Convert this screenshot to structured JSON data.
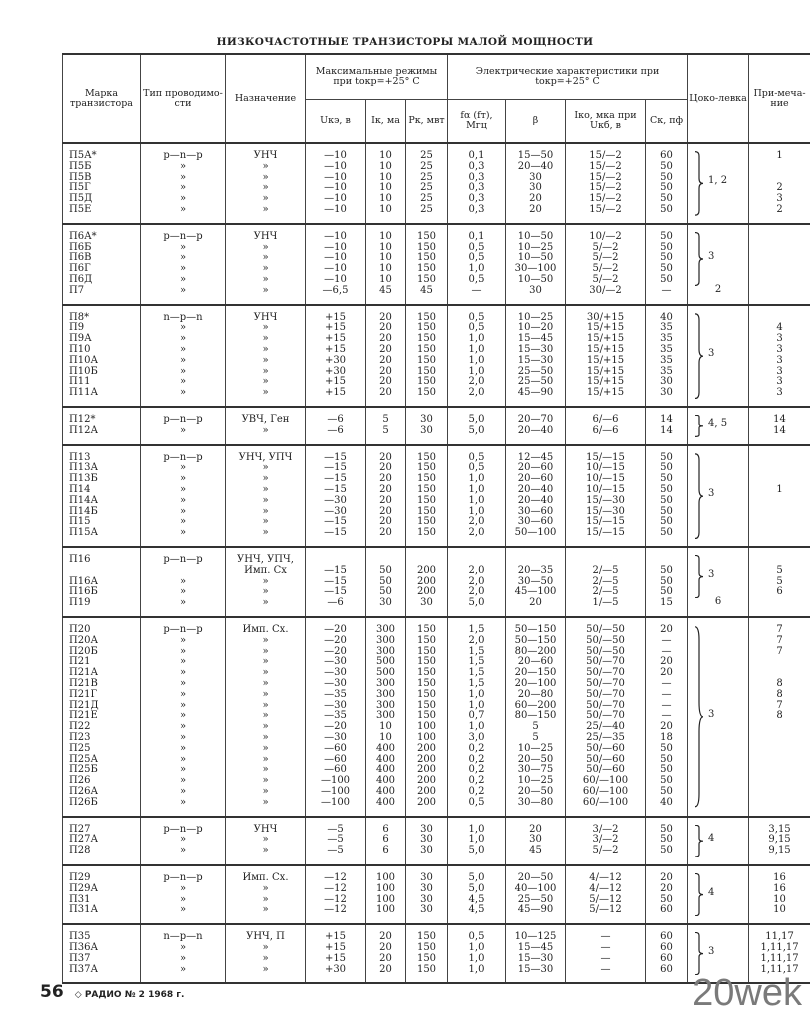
{
  "title": "НИЗКОЧАСТОТНЫЕ ТРАНЗИСТОРЫ МАЛОЙ МОЩНОСТИ",
  "headers": {
    "mark": "Марка транзистора",
    "type": "Тип проводимо-сти",
    "purpose": "Назначение",
    "max_group": "Максимальные режимы при tокр=+25° С",
    "el_group": "Электрические характеристики при tокр=+25° С",
    "base": "Цоко-левка",
    "note": "При-меча-ние",
    "u": "Uкэ, в",
    "i": "Iк, ма",
    "p": "Pк, мвт",
    "f": "fα (fт), Мгц",
    "beta": "β",
    "iko": "Iко, мка при Uкб, в",
    "ck": "Cк, пф"
  },
  "groups": [
    {
      "base": "1, 2",
      "rows": [
        [
          "П5А*",
          "p—n—p",
          "УНЧ",
          "—10",
          "10",
          "25",
          "0,1",
          "15—50",
          "15/—2",
          "60",
          "",
          "1"
        ],
        [
          "П5Б",
          "»",
          "»",
          "—10",
          "10",
          "25",
          "0,3",
          "20—40",
          "15/—2",
          "50",
          "",
          ""
        ],
        [
          "П5В",
          "»",
          "»",
          "—10",
          "10",
          "25",
          "0,3",
          "30",
          "15/—2",
          "50",
          "",
          ""
        ],
        [
          "П5Г",
          "»",
          "»",
          "—10",
          "10",
          "25",
          "0,3",
          "30",
          "15/—2",
          "50",
          "",
          "2"
        ],
        [
          "П5Д",
          "»",
          "»",
          "—10",
          "10",
          "25",
          "0,3",
          "20",
          "15/—2",
          "50",
          "",
          "3"
        ],
        [
          "П5Е",
          "»",
          "»",
          "—10",
          "10",
          "25",
          "0,3",
          "20",
          "15/—2",
          "50",
          "",
          "2"
        ]
      ]
    },
    {
      "base": "3",
      "rows": [
        [
          "П6А*",
          "p—n—p",
          "УНЧ",
          "—10",
          "10",
          "150",
          "0,1",
          "10—50",
          "10/—2",
          "50",
          "",
          ""
        ],
        [
          "П6Б",
          "»",
          "»",
          "—10",
          "10",
          "150",
          "0,5",
          "10—25",
          "5/—2",
          "50",
          "",
          ""
        ],
        [
          "П6В",
          "»",
          "»",
          "—10",
          "10",
          "150",
          "0,5",
          "10—50",
          "5/—2",
          "50",
          "",
          ""
        ],
        [
          "П6Г",
          "»",
          "»",
          "—10",
          "10",
          "150",
          "1,0",
          "30—100",
          "5/—2",
          "50",
          "",
          ""
        ],
        [
          "П6Д",
          "»",
          "»",
          "—10",
          "10",
          "150",
          "0,5",
          "10—50",
          "5/—2",
          "50",
          "",
          ""
        ],
        [
          "П7",
          "»",
          "»",
          "—6,5",
          "45",
          "45",
          "—",
          "30",
          "30/—2",
          "—",
          "2",
          ""
        ]
      ]
    },
    {
      "base": "3",
      "rows": [
        [
          "П8*",
          "n—p—n",
          "УНЧ",
          "+15",
          "20",
          "150",
          "0,5",
          "10—25",
          "30/+15",
          "40",
          "",
          ""
        ],
        [
          "П9",
          "»",
          "»",
          "+15",
          "20",
          "150",
          "0,5",
          "10—20",
          "15/+15",
          "35",
          "",
          "4"
        ],
        [
          "П9А",
          "»",
          "»",
          "+15",
          "20",
          "150",
          "1,0",
          "15—45",
          "15/+15",
          "35",
          "",
          "3"
        ],
        [
          "П10",
          "»",
          "»",
          "+15",
          "20",
          "150",
          "1,0",
          "15—30",
          "15/+15",
          "35",
          "",
          "3"
        ],
        [
          "П10А",
          "»",
          "»",
          "+30",
          "20",
          "150",
          "1,0",
          "15—30",
          "15/+15",
          "35",
          "",
          "3"
        ],
        [
          "П10Б",
          "»",
          "»",
          "+30",
          "20",
          "150",
          "1,0",
          "25—50",
          "15/+15",
          "35",
          "",
          "3"
        ],
        [
          "П11",
          "»",
          "»",
          "+15",
          "20",
          "150",
          "2,0",
          "25—50",
          "15/+15",
          "30",
          "",
          "3"
        ],
        [
          "П11А",
          "»",
          "»",
          "+15",
          "20",
          "150",
          "2,0",
          "45—90",
          "15/+15",
          "30",
          "",
          "3"
        ]
      ]
    },
    {
      "base": "4, 5",
      "rows": [
        [
          "П12*",
          "p—n—p",
          "УВЧ, Ген",
          "—6",
          "5",
          "30",
          "5,0",
          "20—70",
          "6/—6",
          "14",
          "",
          "14"
        ],
        [
          "П12А",
          "»",
          "»",
          "—6",
          "5",
          "30",
          "5,0",
          "20—40",
          "6/—6",
          "14",
          "",
          "14"
        ]
      ]
    },
    {
      "base": "3",
      "rows": [
        [
          "П13",
          "p—n—p",
          "УНЧ, УПЧ",
          "—15",
          "20",
          "150",
          "0,5",
          "12—45",
          "15/—15",
          "50",
          "",
          ""
        ],
        [
          "П13А",
          "»",
          "»",
          "—15",
          "20",
          "150",
          "0,5",
          "20—60",
          "10/—15",
          "50",
          "",
          ""
        ],
        [
          "П13Б",
          "»",
          "»",
          "—15",
          "20",
          "150",
          "1,0",
          "20—60",
          "10/—15",
          "50",
          "",
          ""
        ],
        [
          "П14",
          "»",
          "»",
          "—15",
          "20",
          "150",
          "1,0",
          "20—40",
          "10/—15",
          "50",
          "",
          "1"
        ],
        [
          "П14А",
          "»",
          "»",
          "—30",
          "20",
          "150",
          "1,0",
          "20—40",
          "15/—30",
          "50",
          "",
          ""
        ],
        [
          "П14Б",
          "»",
          "»",
          "—30",
          "20",
          "150",
          "1,0",
          "30—60",
          "15/—30",
          "50",
          "",
          ""
        ],
        [
          "П15",
          "»",
          "»",
          "—15",
          "20",
          "150",
          "2,0",
          "30—60",
          "15/—15",
          "50",
          "",
          ""
        ],
        [
          "П15А",
          "»",
          "»",
          "—15",
          "20",
          "150",
          "2,0",
          "50—100",
          "15/—15",
          "50",
          "",
          ""
        ]
      ]
    },
    {
      "base": "3",
      "rows": [
        [
          "П16",
          "p—n—p",
          "УНЧ, УПЧ, Имп. Сх",
          "—15",
          "50",
          "200",
          "2,0",
          "20—35",
          "2/—5",
          "50",
          "",
          "5"
        ],
        [
          "П16А",
          "»",
          "»",
          "—15",
          "50",
          "200",
          "2,0",
          "30—50",
          "2/—5",
          "50",
          "",
          "5"
        ],
        [
          "П16Б",
          "»",
          "»",
          "—15",
          "50",
          "200",
          "2,0",
          "45—100",
          "2/—5",
          "50",
          "",
          "6"
        ],
        [
          "П19",
          "»",
          "»",
          "—6",
          "30",
          "30",
          "5,0",
          "20",
          "1/—5",
          "15",
          "6",
          ""
        ]
      ]
    },
    {
      "base": "3",
      "rows": [
        [
          "П20",
          "p—n—p",
          "Имп. Сх.",
          "—20",
          "300",
          "150",
          "1,5",
          "50—150",
          "50/—50",
          "20",
          "",
          "7"
        ],
        [
          "П20А",
          "»",
          "»",
          "—20",
          "300",
          "150",
          "2,0",
          "50—150",
          "50/—50",
          "—",
          "",
          "7"
        ],
        [
          "П20Б",
          "»",
          "»",
          "—20",
          "300",
          "150",
          "1,5",
          "80—200",
          "50/—50",
          "—",
          "",
          "7"
        ],
        [
          "П21",
          "»",
          "»",
          "—30",
          "500",
          "150",
          "1,5",
          "20—60",
          "50/—70",
          "20",
          "",
          ""
        ],
        [
          "П21А",
          "»",
          "»",
          "—30",
          "500",
          "150",
          "1,5",
          "20—150",
          "50/—70",
          "20",
          "",
          ""
        ],
        [
          "П21В",
          "»",
          "»",
          "—30",
          "300",
          "150",
          "1,5",
          "20—100",
          "50/—70",
          "—",
          "",
          "8"
        ],
        [
          "П21Г",
          "»",
          "»",
          "—35",
          "300",
          "150",
          "1,0",
          "20—80",
          "50/—70",
          "—",
          "",
          "8"
        ],
        [
          "П21Д",
          "»",
          "»",
          "—30",
          "300",
          "150",
          "1,0",
          "60—200",
          "50/—70",
          "—",
          "",
          "7"
        ],
        [
          "П21Е",
          "»",
          "»",
          "—35",
          "300",
          "150",
          "0,7",
          "80—150",
          "50/—70",
          "—",
          "",
          "8"
        ],
        [
          "П22",
          "»",
          "»",
          "—20",
          "10",
          "100",
          "1,0",
          "5",
          "25/—40",
          "20",
          "",
          ""
        ],
        [
          "П23",
          "»",
          "»",
          "—30",
          "10",
          "100",
          "3,0",
          "5",
          "25/—35",
          "18",
          "",
          ""
        ],
        [
          "П25",
          "»",
          "»",
          "—60",
          "400",
          "200",
          "0,2",
          "10—25",
          "50/—60",
          "50",
          "",
          ""
        ],
        [
          "П25А",
          "»",
          "»",
          "—60",
          "400",
          "200",
          "0,2",
          "20—50",
          "50/—60",
          "50",
          "",
          ""
        ],
        [
          "П25Б",
          "»",
          "»",
          "—60",
          "400",
          "200",
          "0,2",
          "30—75",
          "50/—60",
          "50",
          "",
          ""
        ],
        [
          "П26",
          "»",
          "»",
          "—100",
          "400",
          "200",
          "0,2",
          "10—25",
          "60/—100",
          "50",
          "",
          ""
        ],
        [
          "П26А",
          "»",
          "»",
          "—100",
          "400",
          "200",
          "0,2",
          "20—50",
          "60/—100",
          "50",
          "",
          ""
        ],
        [
          "П26Б",
          "»",
          "»",
          "—100",
          "400",
          "200",
          "0,5",
          "30—80",
          "60/—100",
          "40",
          "",
          ""
        ]
      ]
    },
    {
      "base": "4",
      "rows": [
        [
          "П27",
          "p—n—p",
          "УНЧ",
          "—5",
          "6",
          "30",
          "1,0",
          "20",
          "3/—2",
          "50",
          "",
          "3,15"
        ],
        [
          "П27А",
          "»",
          "»",
          "—5",
          "6",
          "30",
          "1,0",
          "30",
          "3/—2",
          "50",
          "",
          "9,15"
        ],
        [
          "П28",
          "»",
          "»",
          "—5",
          "6",
          "30",
          "5,0",
          "45",
          "5/—2",
          "50",
          "",
          "9,15"
        ]
      ]
    },
    {
      "base": "4",
      "rows": [
        [
          "П29",
          "p—n—p",
          "Имп. Сх.",
          "—12",
          "100",
          "30",
          "5,0",
          "20—50",
          "4/—12",
          "20",
          "",
          "16"
        ],
        [
          "П29А",
          "»",
          "»",
          "—12",
          "100",
          "30",
          "5,0",
          "40—100",
          "4/—12",
          "20",
          "",
          "16"
        ],
        [
          "П31",
          "»",
          "»",
          "—12",
          "100",
          "30",
          "4,5",
          "25—50",
          "5/—12",
          "50",
          "",
          "10"
        ],
        [
          "П31А",
          "»",
          "»",
          "—12",
          "100",
          "30",
          "4,5",
          "45—90",
          "5/—12",
          "60",
          "",
          "10"
        ]
      ]
    },
    {
      "base": "3",
      "rows": [
        [
          "П35",
          "n—p—n",
          "УНЧ, П",
          "+15",
          "20",
          "150",
          "0,5",
          "10—125",
          "—",
          "60",
          "",
          "11,17"
        ],
        [
          "П36А",
          "»",
          "»",
          "+15",
          "20",
          "150",
          "1,0",
          "15—45",
          "—",
          "60",
          "",
          "1,11,17"
        ],
        [
          "П37",
          "»",
          "»",
          "+15",
          "20",
          "150",
          "1,0",
          "15—30",
          "—",
          "60",
          "",
          "1,11,17"
        ],
        [
          "П37А",
          "»",
          "»",
          "+30",
          "20",
          "150",
          "1,0",
          "15—30",
          "—",
          "60",
          "",
          "1,11,17"
        ]
      ]
    }
  ],
  "footer": {
    "page": "56",
    "magazine": "◇ РАДИО № 2 1968 г."
  },
  "watermark": "20wek"
}
